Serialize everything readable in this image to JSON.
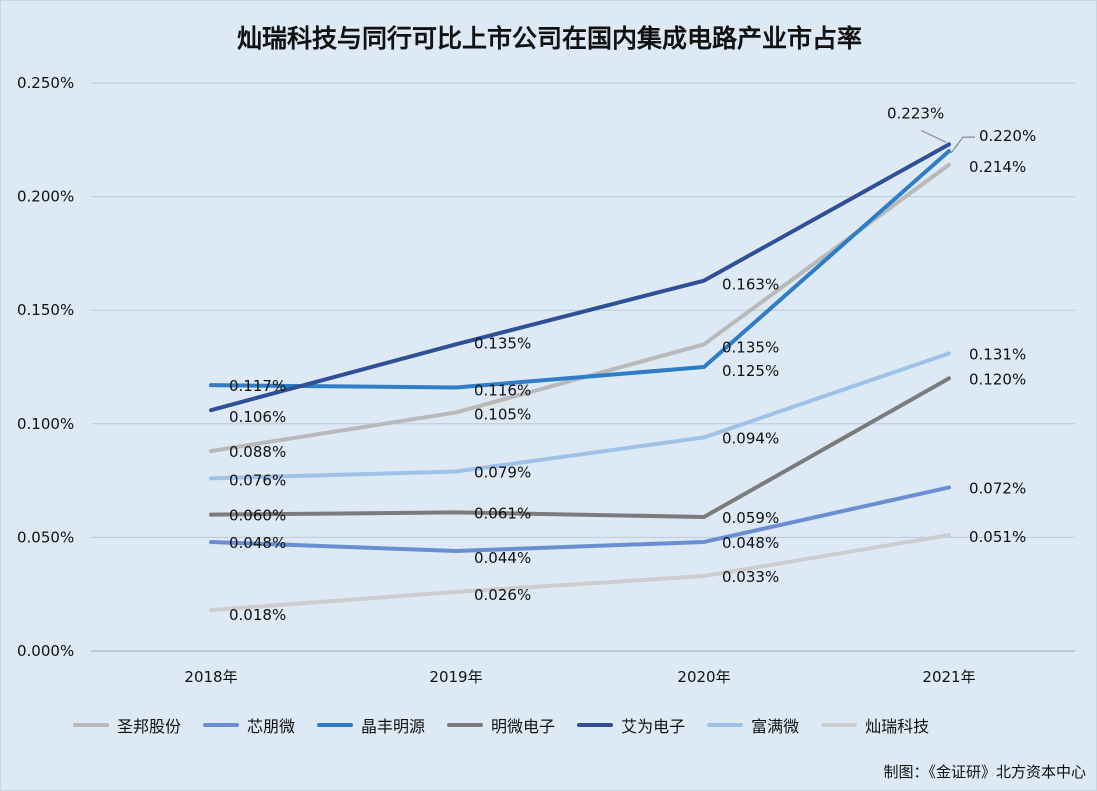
{
  "chart_data": {
    "type": "line",
    "title": "灿瑞科技与同行可比上市公司在国内集成电路产业市占率",
    "categories": [
      "2018年",
      "2019年",
      "2020年",
      "2021年"
    ],
    "y_ticks": [
      "0.000%",
      "0.050%",
      "0.100%",
      "0.150%",
      "0.200%",
      "0.250%"
    ],
    "ylim": [
      0,
      0.25
    ],
    "grid": true,
    "legend_position": "bottom",
    "series": [
      {
        "name": "圣邦股份",
        "color": "#b9b9b9",
        "values": [
          0.088,
          0.105,
          0.135,
          0.214
        ],
        "labels": [
          "0.088%",
          "0.105%",
          "0.135%",
          "0.214%"
        ]
      },
      {
        "name": "芯朋微",
        "color": "#6a8ed2",
        "values": [
          0.048,
          0.044,
          0.048,
          0.072
        ],
        "labels": [
          "0.048%",
          "0.044%",
          "0.048%",
          "0.072%"
        ]
      },
      {
        "name": "晶丰明源",
        "color": "#2e7dc6",
        "values": [
          0.117,
          0.116,
          0.125,
          0.22
        ],
        "labels": [
          "0.117%",
          "0.116%",
          "0.125%",
          "0.220%"
        ]
      },
      {
        "name": "明微电子",
        "color": "#7b7b7b",
        "values": [
          0.06,
          0.061,
          0.059,
          0.12
        ],
        "labels": [
          "0.060%",
          "0.061%",
          "0.059%",
          "0.120%"
        ]
      },
      {
        "name": "艾为电子",
        "color": "#2f4f96",
        "values": [
          0.106,
          0.135,
          0.163,
          0.223
        ],
        "labels": [
          "0.106%",
          "0.135%",
          "0.163%",
          "0.223%"
        ]
      },
      {
        "name": "富满微",
        "color": "#9fc3e8",
        "values": [
          0.076,
          0.079,
          0.094,
          0.131
        ],
        "labels": [
          "0.076%",
          "0.079%",
          "0.094%",
          "0.131%"
        ]
      },
      {
        "name": "灿瑞科技",
        "color": "#cdcdcd",
        "values": [
          0.018,
          0.026,
          0.033,
          0.051
        ],
        "labels": [
          "0.018%",
          "0.026%",
          "0.033%",
          "0.051%"
        ]
      }
    ]
  },
  "source_note": "制图：《金证研》北方资本中心"
}
